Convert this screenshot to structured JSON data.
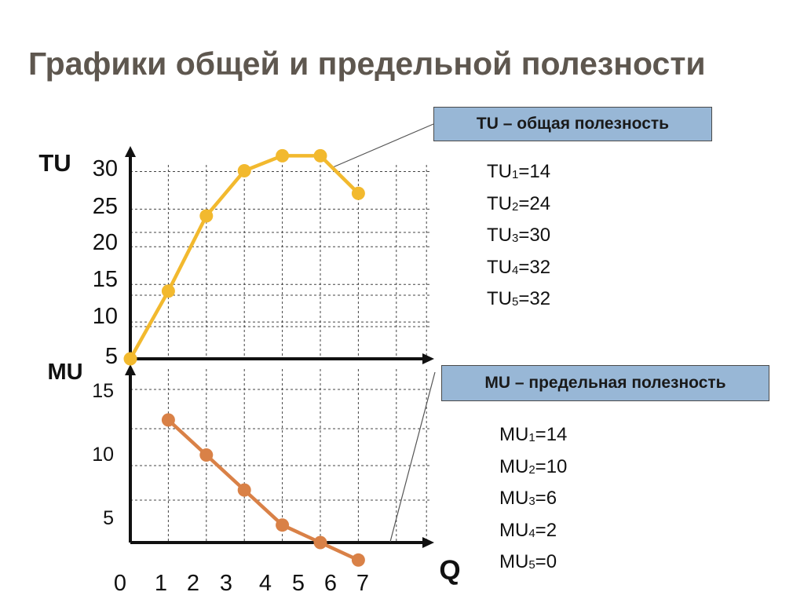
{
  "title": "Графики общей и предельной полезности",
  "legend_boxes": {
    "tu": "TU – общая полезность",
    "mu": "MU – предельная полезность"
  },
  "tu_values": [
    {
      "prefix": "TU",
      "sub": "1",
      "value": "=14"
    },
    {
      "prefix": "TU",
      "sub": "2",
      "value": "=24"
    },
    {
      "prefix": "TU",
      "sub": "3",
      "value": "=30"
    },
    {
      "prefix": "TU",
      "sub": "4",
      "value": "=32"
    },
    {
      "prefix": "TU",
      "sub": "5",
      "value": "=32"
    }
  ],
  "mu_values": [
    {
      "prefix": "MU",
      "sub": "1",
      "value": "=14"
    },
    {
      "prefix": "MU",
      "sub": "2",
      "value": "=10"
    },
    {
      "prefix": "MU",
      "sub": "3",
      "value": "=6"
    },
    {
      "prefix": "MU",
      "sub": "4",
      "value": "=2"
    },
    {
      "prefix": "MU",
      "sub": "5",
      "value": "=0"
    }
  ],
  "colors": {
    "tu_line": "#f2b92e",
    "mu_line": "#d98147",
    "box_fill": "#98b7d6",
    "title": "#5e574f"
  },
  "chart_data": [
    {
      "type": "line",
      "ylabel": "TU",
      "xlabel": "Q",
      "x_ticks": [
        "0",
        "1",
        "2",
        "3",
        "4",
        "5",
        "6",
        "7"
      ],
      "y_ticks": [
        "5",
        "10",
        "15",
        "20",
        "25",
        "30"
      ],
      "ylim": [
        5,
        32
      ],
      "xlim": [
        0,
        8
      ],
      "grid": true,
      "series": [
        {
          "x": [
            0,
            1,
            2,
            3,
            4,
            5,
            6
          ],
          "y": [
            5,
            14,
            24,
            30,
            32,
            32,
            27
          ]
        }
      ]
    },
    {
      "type": "line",
      "ylabel": "MU",
      "xlabel": "Q",
      "x_ticks": [
        "0",
        "1",
        "2",
        "3",
        "4",
        "5",
        "6",
        "7"
      ],
      "y_ticks": [
        "5",
        "10",
        "15"
      ],
      "ylim": [
        0,
        15
      ],
      "xlim": [
        0,
        8
      ],
      "grid": true,
      "series": [
        {
          "x": [
            1,
            2,
            3,
            4,
            5,
            6
          ],
          "y": [
            14,
            10,
            6,
            2,
            0,
            -2
          ]
        }
      ]
    }
  ]
}
